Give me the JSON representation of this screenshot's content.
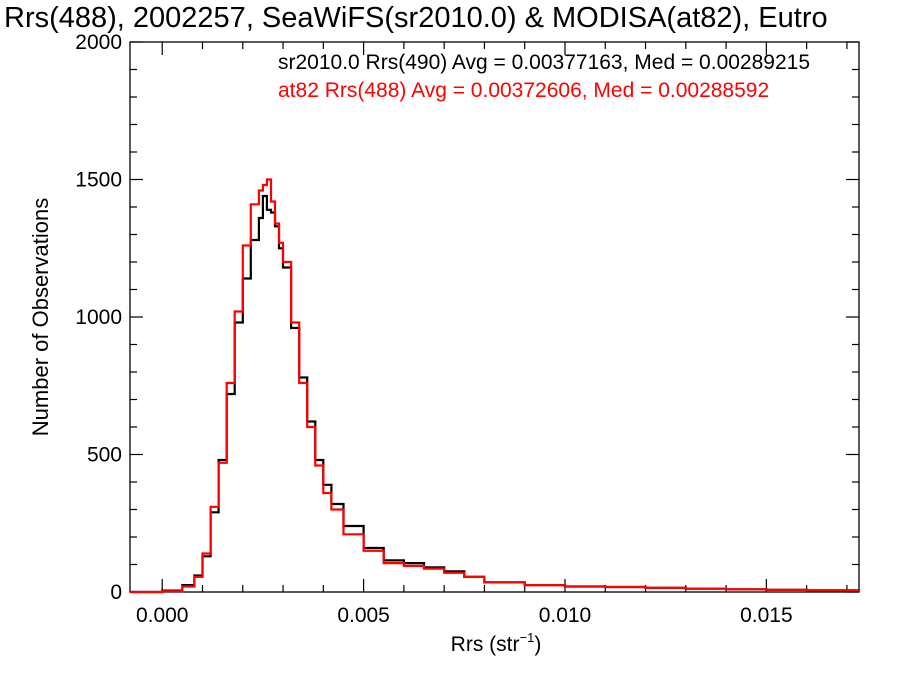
{
  "chart_data": {
    "type": "line",
    "title": "Rrs(488), 2002257, SeaWiFS(sr2010.0) & MODISA(at82), Eutro",
    "xlabel_main": "Rrs (str",
    "xlabel_sup": "−1",
    "xlabel_close": ")",
    "ylabel": "Number of Observations",
    "xlim": [
      -0.0008,
      0.0173
    ],
    "ylim": [
      0,
      2000
    ],
    "xticks": [
      0.0,
      0.005,
      0.01,
      0.015
    ],
    "xtick_labels": [
      "0.000",
      "0.005",
      "0.010",
      "0.015"
    ],
    "yticks": [
      0,
      500,
      1000,
      1500,
      2000
    ],
    "ytick_labels": [
      "0",
      "500",
      "1000",
      "1500",
      "2000"
    ],
    "grid": false,
    "step": true,
    "annotations": [
      {
        "text": "sr2010.0 Rrs(490) Avg = 0.00377163, Med = 0.00289215",
        "color": "#000000"
      },
      {
        "text": "at82 Rrs(488) Avg = 0.00372606, Med = 0.00288592",
        "color": "#ff0000"
      }
    ],
    "series": [
      {
        "color": "#000000",
        "x": [
          -0.0008,
          0.0,
          0.0005,
          0.0008,
          0.001,
          0.0012,
          0.0014,
          0.0016,
          0.0018,
          0.002,
          0.0022,
          0.0024,
          0.0025,
          0.0026,
          0.0027,
          0.0028,
          0.0029,
          0.003,
          0.0032,
          0.0034,
          0.0036,
          0.0038,
          0.004,
          0.0042,
          0.0045,
          0.005,
          0.0055,
          0.006,
          0.0065,
          0.007,
          0.0075,
          0.008,
          0.009,
          0.01,
          0.011,
          0.012,
          0.013,
          0.014,
          0.015,
          0.016,
          0.0173
        ],
        "y": [
          0,
          5,
          25,
          60,
          130,
          290,
          480,
          720,
          980,
          1140,
          1280,
          1360,
          1440,
          1390,
          1380,
          1330,
          1250,
          1180,
          960,
          780,
          620,
          480,
          390,
          320,
          240,
          160,
          115,
          105,
          90,
          75,
          55,
          35,
          25,
          20,
          18,
          15,
          12,
          10,
          8,
          6,
          5
        ]
      },
      {
        "color": "#ff0000",
        "x": [
          -0.0008,
          0.0,
          0.0005,
          0.0008,
          0.001,
          0.0012,
          0.0014,
          0.0016,
          0.0018,
          0.002,
          0.0022,
          0.0024,
          0.0025,
          0.0026,
          0.0027,
          0.0028,
          0.0029,
          0.003,
          0.0032,
          0.0034,
          0.0036,
          0.0038,
          0.004,
          0.0042,
          0.0045,
          0.005,
          0.0055,
          0.006,
          0.0065,
          0.007,
          0.0075,
          0.008,
          0.009,
          0.01,
          0.011,
          0.012,
          0.013,
          0.014,
          0.015,
          0.016,
          0.0173
        ],
        "y": [
          0,
          3,
          20,
          55,
          140,
          310,
          470,
          760,
          1020,
          1260,
          1410,
          1460,
          1480,
          1500,
          1420,
          1340,
          1270,
          1200,
          980,
          760,
          600,
          460,
          360,
          300,
          210,
          150,
          105,
          95,
          85,
          70,
          55,
          35,
          25,
          20,
          18,
          15,
          12,
          10,
          8,
          6,
          5
        ]
      }
    ]
  }
}
